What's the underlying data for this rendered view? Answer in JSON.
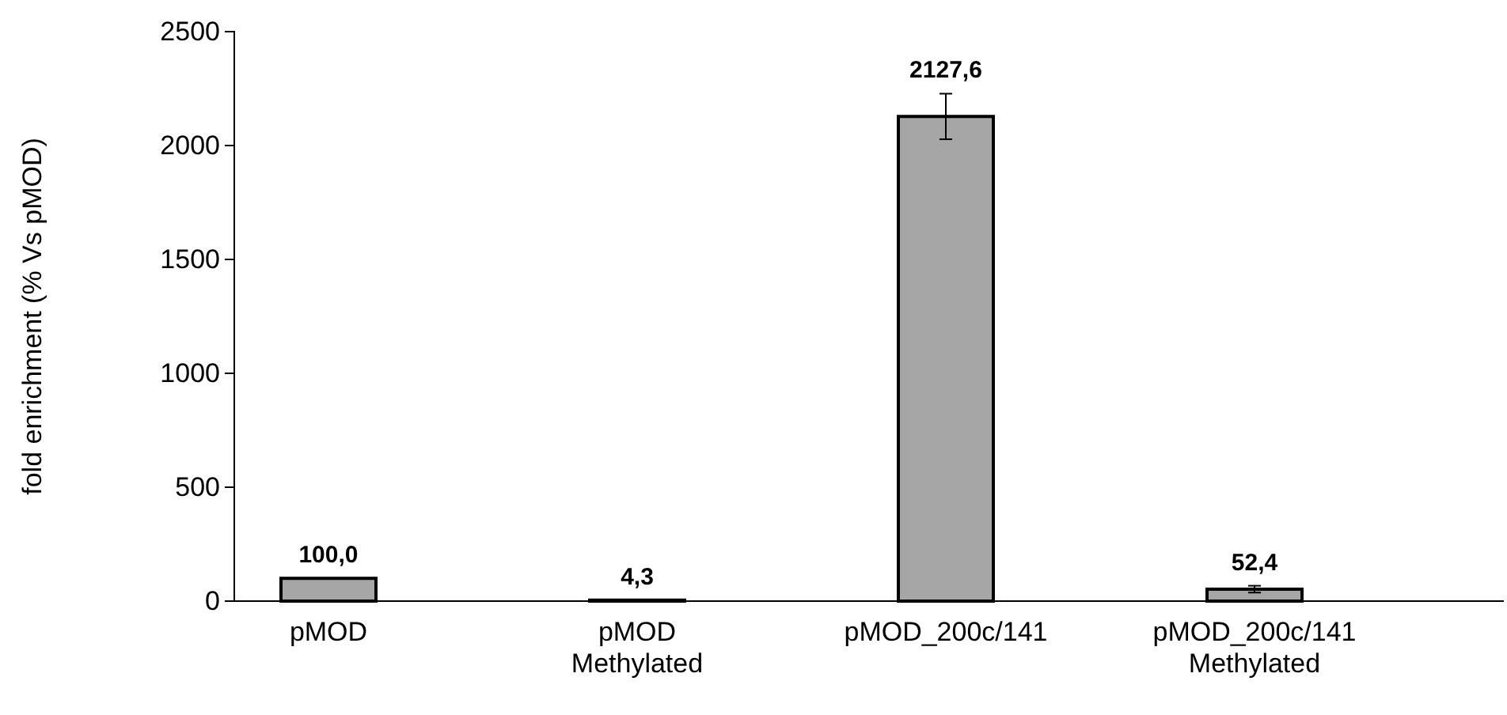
{
  "chart_data": {
    "type": "bar",
    "ylabel": "fold enrichment (% Vs pMOD)",
    "categories": [
      "pMOD",
      "pMOD\nMethylated",
      "pMOD_200c/141",
      "pMOD_200c/141\nMethylated"
    ],
    "values": [
      100.0,
      4.3,
      2127.6,
      52.4
    ],
    "errors": [
      null,
      null,
      100,
      15
    ],
    "value_labels": [
      "100,0",
      "4,3",
      "2127,6",
      "52,4"
    ],
    "color": "#a6a6a6",
    "ylim": [
      0,
      2500
    ],
    "yticks": [
      0,
      500,
      1000,
      1500,
      2000,
      2500
    ],
    "grid": false
  }
}
